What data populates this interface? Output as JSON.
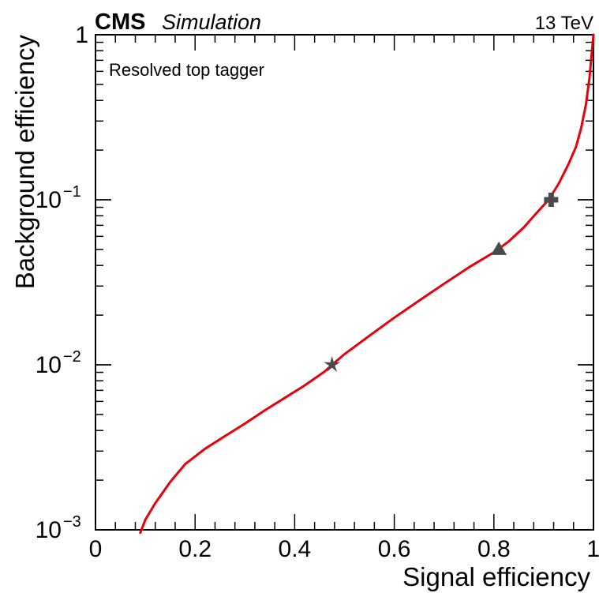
{
  "chart_data": {
    "type": "line",
    "experiment": "CMS",
    "status": "Simulation",
    "energy": "13 TeV",
    "annotation": "Resolved top tagger",
    "xlabel": "Signal efficiency",
    "ylabel": "Background efficiency",
    "xlim": [
      0,
      1
    ],
    "ylim": [
      0.001,
      1
    ],
    "yscale": "log",
    "grid": false,
    "legend": "none",
    "x_ticks": [
      "0",
      "0.2",
      "0.4",
      "0.6",
      "0.8",
      "1"
    ],
    "x_tick_values": [
      0,
      0.2,
      0.4,
      0.6,
      0.8,
      1
    ],
    "y_ticks": [
      {
        "value": 1,
        "base": "1",
        "exp": ""
      },
      {
        "value": 0.1,
        "base": "10",
        "exp": "−1"
      },
      {
        "value": 0.01,
        "base": "10",
        "exp": "−2"
      },
      {
        "value": 0.001,
        "base": "10",
        "exp": "−3"
      }
    ],
    "series": [
      {
        "color": "#e8000b",
        "x": [
          0.09,
          0.1,
          0.12,
          0.15,
          0.18,
          0.22,
          0.26,
          0.3,
          0.34,
          0.38,
          0.42,
          0.46,
          0.475,
          0.5,
          0.55,
          0.6,
          0.65,
          0.7,
          0.75,
          0.8,
          0.83,
          0.86,
          0.89,
          0.91,
          0.93,
          0.95,
          0.965,
          0.975,
          0.985,
          0.992,
          0.997,
          1.0
        ],
        "y": [
          0.00096,
          0.00115,
          0.00145,
          0.00195,
          0.0025,
          0.0031,
          0.0037,
          0.0044,
          0.0053,
          0.0063,
          0.0075,
          0.0091,
          0.01,
          0.0116,
          0.015,
          0.0193,
          0.0245,
          0.031,
          0.039,
          0.048,
          0.056,
          0.068,
          0.086,
          0.1,
          0.125,
          0.165,
          0.21,
          0.27,
          0.38,
          0.55,
          0.8,
          1.0
        ]
      }
    ],
    "working_points": [
      {
        "marker": "star",
        "x": 0.475,
        "y": 0.01,
        "color": "#4a4a4a"
      },
      {
        "marker": "triangle",
        "x": 0.81,
        "y": 0.05,
        "color": "#4a4a4a"
      },
      {
        "marker": "cross",
        "x": 0.915,
        "y": 0.1,
        "color": "#4a4a4a"
      }
    ]
  }
}
